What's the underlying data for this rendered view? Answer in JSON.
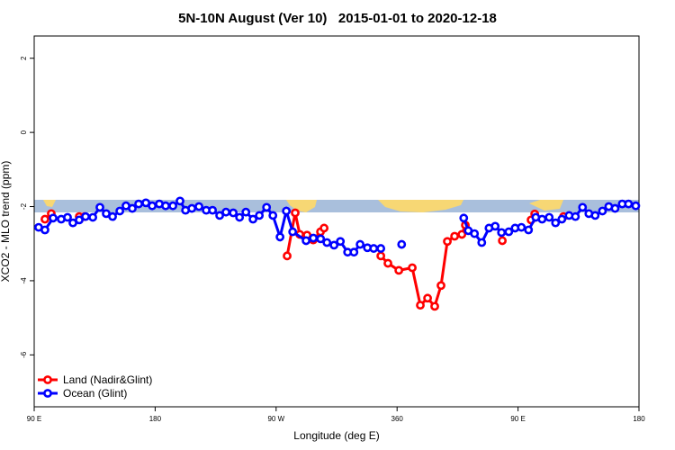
{
  "chart_data": {
    "type": "line",
    "title": "5N-10N August (Ver 10)   2015-01-01 to 2020-12-18",
    "xlabel": "Longitude (deg E)",
    "ylabel": "XCO2 - MLO trend (ppm)",
    "xlim": [
      90,
      540
    ],
    "ylim": [
      -7.4,
      2.6
    ],
    "xticks": [
      {
        "value": 90,
        "label": "90 E"
      },
      180,
      {
        "value": 270,
        "label": "90 W"
      },
      360,
      {
        "value": 450,
        "label": "90 E"
      },
      {
        "value": 540,
        "label": "180"
      }
    ],
    "yticks": [
      2,
      0,
      -2,
      -4,
      -6
    ],
    "legend": "bottom-left",
    "series": [
      {
        "name": "Land (Nadir&Glint)",
        "color": "#ff0000",
        "x": [
          98.0,
          102.7,
          113,
          123.5,
          127.5,
          200,
          278.2,
          284.2,
          287.6,
          293.0,
          297.6,
          303.0,
          305.7,
          325,
          347.9,
          353.2,
          361.3,
          371.3,
          377.3,
          382.7,
          388.0,
          392.7,
          397.4,
          402.8,
          408.2,
          410.8,
          425,
          438.3,
          450,
          459.7,
          462.4,
          470,
          483.8
        ],
        "values": [
          -2.34,
          -2.19,
          null,
          -2.27,
          -2.27,
          null,
          -3.33,
          -2.17,
          -2.75,
          -2.77,
          -2.9,
          -2.68,
          -2.58,
          null,
          -3.33,
          -3.53,
          -3.72,
          -3.65,
          -4.66,
          -4.47,
          -4.69,
          -4.13,
          -2.94,
          -2.8,
          -2.75,
          -2.5,
          null,
          -2.92,
          null,
          -2.36,
          -2.2,
          null,
          -2.27
        ]
      },
      {
        "name": "Ocean (Glint)",
        "color": "#0000ff",
        "x": [
          93.3,
          98.0,
          104.1,
          110.1,
          114.8,
          118.8,
          123.5,
          128.2,
          133.6,
          138.9,
          143.6,
          148.3,
          153.7,
          158.3,
          163.0,
          167.7,
          173.1,
          177.8,
          183.1,
          187.8,
          193.2,
          198.5,
          202.6,
          207.3,
          212.6,
          218.0,
          222.7,
          228.0,
          232.7,
          238.1,
          242.8,
          247.5,
          252.8,
          257.5,
          262.9,
          267.6,
          272.9,
          277.6,
          282.3,
          292.3,
          297.7,
          303.1,
          307.8,
          313.1,
          317.8,
          323.2,
          327.9,
          332.5,
          337.9,
          342.6,
          347.9,
          355,
          363.4,
          385,
          409.6,
          413.0,
          417.6,
          423.0,
          428.4,
          433.0,
          437.7,
          443.1,
          447.8,
          452.5,
          457.8,
          463.2,
          467.9,
          473.2,
          477.9,
          482.6,
          488.0,
          492.7,
          498.0,
          502.7,
          507.4,
          512.8,
          517.5,
          522.2,
          527.5,
          532.2,
          537.6
        ],
        "values": [
          -2.56,
          -2.63,
          -2.31,
          -2.34,
          -2.29,
          -2.44,
          -2.36,
          -2.27,
          -2.29,
          -2.02,
          -2.19,
          -2.27,
          -2.12,
          -1.98,
          -2.05,
          -1.93,
          -1.9,
          -1.98,
          -1.93,
          -1.98,
          -1.98,
          -1.85,
          -2.1,
          -2.05,
          -2.0,
          -2.1,
          -2.1,
          -2.24,
          -2.15,
          -2.17,
          -2.29,
          -2.15,
          -2.34,
          -2.24,
          -2.02,
          -2.24,
          -2.82,
          -2.12,
          -2.68,
          -2.92,
          -2.85,
          -2.87,
          -2.97,
          -3.04,
          -2.94,
          -3.23,
          -3.23,
          -3.02,
          -3.11,
          -3.13,
          -3.13,
          null,
          -3.02,
          null,
          -2.31,
          -2.65,
          -2.73,
          -2.97,
          -2.58,
          -2.53,
          -2.7,
          -2.68,
          -2.58,
          -2.56,
          -2.63,
          -2.29,
          -2.34,
          -2.29,
          -2.44,
          -2.34,
          -2.24,
          -2.27,
          -2.02,
          -2.19,
          -2.24,
          -2.12,
          -2.0,
          -2.05,
          -1.93,
          -1.93,
          -1.98
        ]
      }
    ]
  }
}
